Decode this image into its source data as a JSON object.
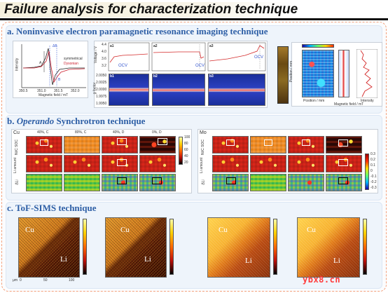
{
  "title": "Failure analysis for characterization technique",
  "sections": {
    "a": {
      "title": "a. Noninvasive electron paramagnetic resonance imaging technique",
      "epr": {
        "ylabel": "Intensity",
        "xlabel": "Magnetic field / mT",
        "xticks": [
          "350.5",
          "351.0",
          "351.5",
          "352.0"
        ],
        "legend": [
          "symmetrical",
          "Dysonian"
        ],
        "annotations": [
          "ΔB",
          "A",
          "B"
        ]
      },
      "voltage": {
        "ylabel": "Voltage / V",
        "yticks": [
          "4.4",
          "4.0",
          "3.6",
          "3.2"
        ],
        "panels": [
          "a1",
          "a2",
          "a3"
        ],
        "ocv": [
          "OCV",
          "OCV",
          "OCV"
        ],
        "xticks": [
          "0",
          "20",
          "40",
          "60",
          "80",
          "100",
          "120",
          "140"
        ]
      },
      "gfactor": {
        "ylabel": "g factor",
        "yticks": [
          "2.0050",
          "2.0025",
          "2.0000",
          "1.9975",
          "1.9950"
        ],
        "panels": [
          "b1",
          "b2",
          "b3"
        ]
      },
      "imaging": {
        "xlabel_1": "Position / mm",
        "ylabel_1": "Position / mm",
        "xlabel_2": "Magnetic field / mT",
        "xlabel_3": "Intensity",
        "yticks": [
          "4",
          "2",
          "0",
          "-2",
          "-4"
        ]
      }
    },
    "b": {
      "title_prefix": "b.",
      "title_italic": "Operando",
      "title_suffix": "Synchrotron technique",
      "left": {
        "element": "Cu",
        "columns": [
          "40%, C",
          "80%, C",
          "40%, D",
          "0%, D"
        ],
        "rows": [
          "Ni/C SOC",
          "Li amount",
          "ΔLi"
        ],
        "colorbar_ticks": [
          "100",
          "80",
          "60",
          "40",
          "20"
        ],
        "colorbar_label": "Ni/C SOC (%)"
      },
      "right": {
        "element": "Mo",
        "rows": [
          "Ni/C SOC",
          "Li amount",
          "ΔLi"
        ],
        "colorbar_ticks": [
          "0.3",
          "0.2",
          "0.1",
          "0",
          "-0.1",
          "-0.2",
          "-0.3"
        ],
        "colorbar_label": "ΔLi (mAh cm⁻²)"
      }
    },
    "c": {
      "title": "c. ToF-SIMS technique",
      "maps": [
        {
          "label_top": "Cu",
          "label_bottom": "Li",
          "style": "dark"
        },
        {
          "label_top": "Cu",
          "label_bottom": "Li",
          "style": "dark"
        },
        {
          "label_top": "Cu",
          "label_bottom": "Li",
          "style": "bright"
        },
        {
          "label_top": "Cu",
          "label_bottom": "Li",
          "style": "bright"
        }
      ],
      "axis_unit": "μm",
      "xticks": [
        "0",
        "50",
        "100"
      ]
    }
  },
  "watermark": "ybx8.cn"
}
